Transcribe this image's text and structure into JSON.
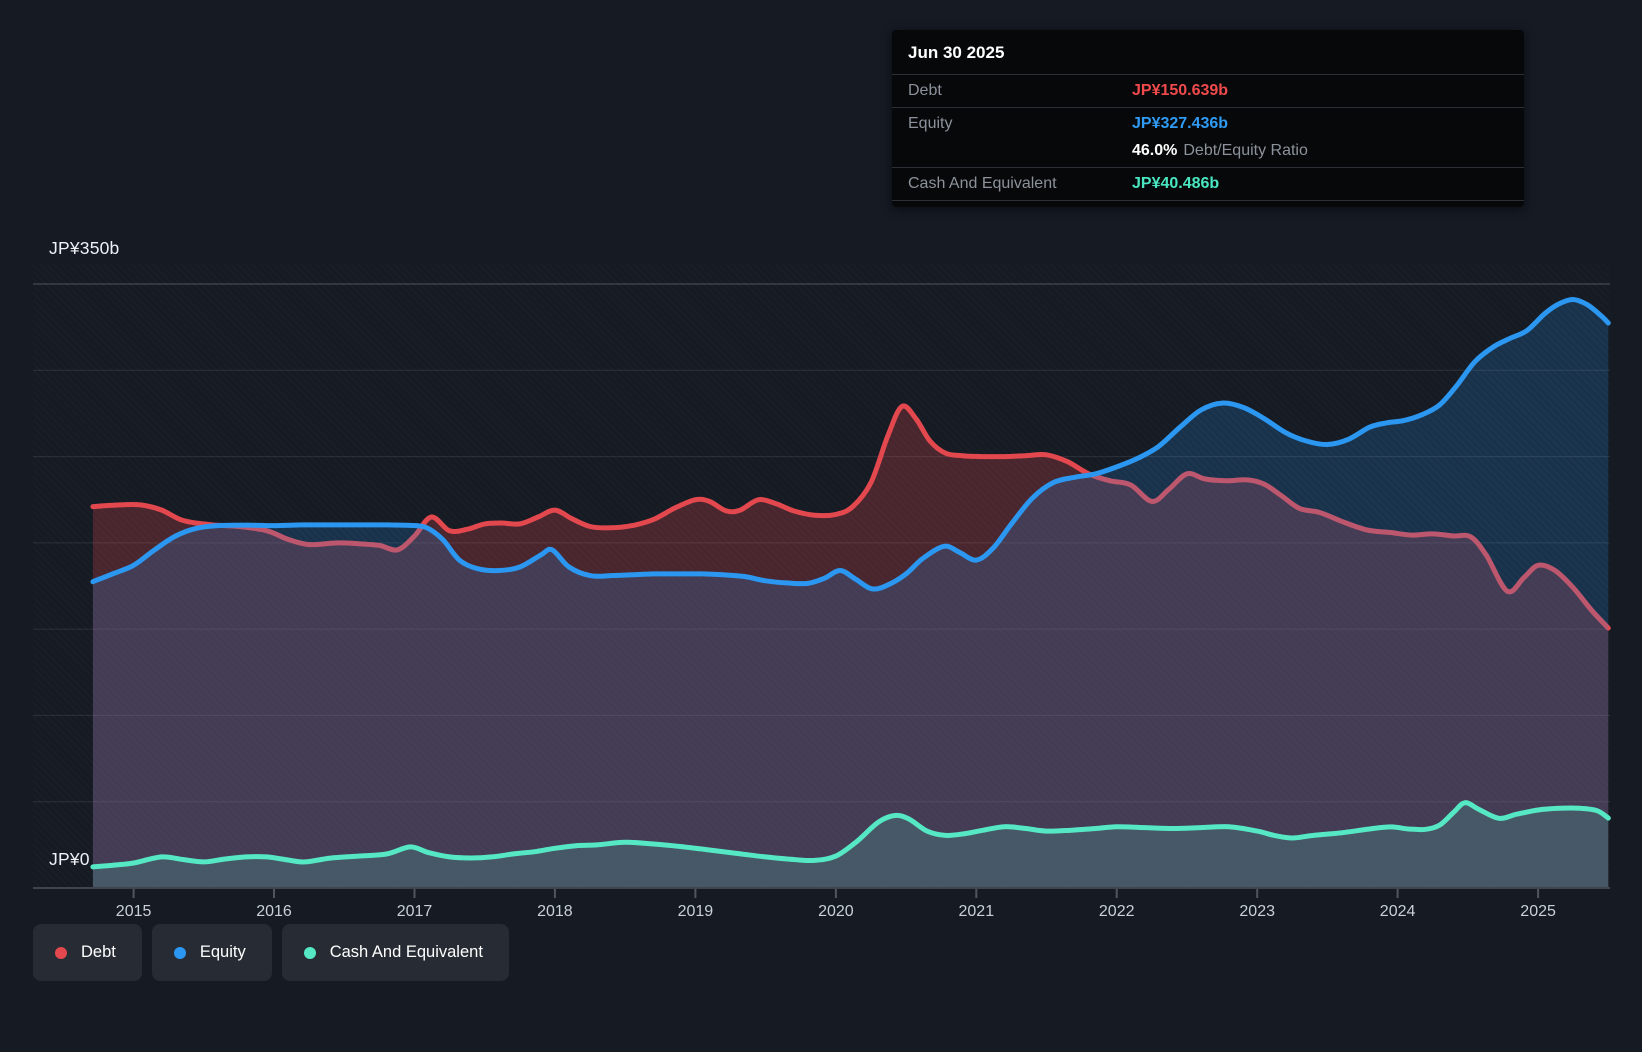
{
  "tooltip": {
    "date": "Jun 30 2025",
    "debt_label": "Debt",
    "debt_value": "JP¥150.639b",
    "equity_label": "Equity",
    "equity_value": "JP¥327.436b",
    "ratio_value": "46.0%",
    "ratio_label": "Debt/Equity Ratio",
    "cash_label": "Cash And Equivalent",
    "cash_value": "JP¥40.486b",
    "debt_color": "#f04a4d",
    "equity_color": "#2f9bf4",
    "cash_color": "#49e6c2"
  },
  "axis": {
    "y_top_label": "JP¥350b",
    "y_zero_label": "JP¥0",
    "years": [
      "2015",
      "2016",
      "2017",
      "2018",
      "2019",
      "2020",
      "2021",
      "2022",
      "2023",
      "2024",
      "2025"
    ]
  },
  "legend": {
    "items": [
      {
        "label": "Debt",
        "color": "#e2484e"
      },
      {
        "label": "Equity",
        "color": "#2b97f1"
      },
      {
        "label": "Cash And Equivalent",
        "color": "#56e8c4"
      }
    ]
  },
  "chart_data": {
    "type": "area",
    "title": "Debt to Equity history",
    "unit": "JP¥ billions",
    "ylim": [
      0,
      350
    ],
    "x_range": [
      2014.71,
      2025.5
    ],
    "gridline_values": [
      350,
      300,
      250,
      200,
      150,
      100,
      50
    ],
    "year_ticks": [
      2015,
      2016,
      2017,
      2018,
      2019,
      2020,
      2021,
      2022,
      2023,
      2024,
      2025
    ],
    "last_point_date": "Jun 30 2025",
    "series": [
      {
        "name": "Debt",
        "color": "#e2484e",
        "fill_alpha": 0.26,
        "end_value": 150.639,
        "points": [
          [
            2014.71,
            221
          ],
          [
            2014.9,
            222
          ],
          [
            2015.05,
            222
          ],
          [
            2015.2,
            219
          ],
          [
            2015.35,
            213
          ],
          [
            2015.55,
            210.5
          ],
          [
            2015.75,
            209.5
          ],
          [
            2015.95,
            207
          ],
          [
            2016.1,
            202
          ],
          [
            2016.25,
            199
          ],
          [
            2016.45,
            200
          ],
          [
            2016.6,
            199.5
          ],
          [
            2016.75,
            198.5
          ],
          [
            2016.88,
            196
          ],
          [
            2017.0,
            204
          ],
          [
            2017.12,
            215
          ],
          [
            2017.25,
            207
          ],
          [
            2017.38,
            208
          ],
          [
            2017.5,
            211
          ],
          [
            2017.62,
            211.5
          ],
          [
            2017.75,
            211
          ],
          [
            2017.88,
            215
          ],
          [
            2018.0,
            219
          ],
          [
            2018.12,
            214
          ],
          [
            2018.25,
            209.5
          ],
          [
            2018.4,
            208.7
          ],
          [
            2018.55,
            210
          ],
          [
            2018.7,
            213.5
          ],
          [
            2018.85,
            220
          ],
          [
            2019.0,
            225
          ],
          [
            2019.1,
            224
          ],
          [
            2019.22,
            218.5
          ],
          [
            2019.32,
            219
          ],
          [
            2019.45,
            225
          ],
          [
            2019.58,
            222.5
          ],
          [
            2019.7,
            218.5
          ],
          [
            2019.85,
            216
          ],
          [
            2020.0,
            216.5
          ],
          [
            2020.12,
            221
          ],
          [
            2020.25,
            235
          ],
          [
            2020.37,
            262
          ],
          [
            2020.47,
            279
          ],
          [
            2020.57,
            272
          ],
          [
            2020.67,
            259
          ],
          [
            2020.78,
            252
          ],
          [
            2020.9,
            250.5
          ],
          [
            2021.05,
            250
          ],
          [
            2021.2,
            250
          ],
          [
            2021.35,
            250.5
          ],
          [
            2021.5,
            251
          ],
          [
            2021.65,
            247
          ],
          [
            2021.8,
            240
          ],
          [
            2021.95,
            236
          ],
          [
            2022.1,
            233.5
          ],
          [
            2022.25,
            224
          ],
          [
            2022.37,
            231
          ],
          [
            2022.5,
            240
          ],
          [
            2022.63,
            237
          ],
          [
            2022.78,
            236
          ],
          [
            2022.93,
            236.5
          ],
          [
            2023.05,
            234
          ],
          [
            2023.17,
            227.5
          ],
          [
            2023.3,
            220
          ],
          [
            2023.45,
            217.5
          ],
          [
            2023.6,
            212.5
          ],
          [
            2023.78,
            207.5
          ],
          [
            2023.95,
            206
          ],
          [
            2024.1,
            204.5
          ],
          [
            2024.25,
            205.2
          ],
          [
            2024.4,
            204
          ],
          [
            2024.52,
            203.5
          ],
          [
            2024.63,
            193
          ],
          [
            2024.78,
            172
          ],
          [
            2024.9,
            180
          ],
          [
            2025.0,
            187
          ],
          [
            2025.12,
            184
          ],
          [
            2025.25,
            174
          ],
          [
            2025.38,
            161
          ],
          [
            2025.5,
            150.6
          ]
        ]
      },
      {
        "name": "Equity",
        "color": "#2b97f1",
        "fill_alpha": 0.2,
        "end_value": 327.436,
        "points": [
          [
            2014.71,
            177.5
          ],
          [
            2014.85,
            182
          ],
          [
            2015.0,
            187
          ],
          [
            2015.15,
            196
          ],
          [
            2015.3,
            204
          ],
          [
            2015.45,
            208.5
          ],
          [
            2015.6,
            210
          ],
          [
            2015.8,
            210.3
          ],
          [
            2016.0,
            210
          ],
          [
            2016.2,
            210.4
          ],
          [
            2016.4,
            210.4
          ],
          [
            2016.6,
            210.4
          ],
          [
            2016.8,
            210.4
          ],
          [
            2016.95,
            210.2
          ],
          [
            2017.08,
            209
          ],
          [
            2017.2,
            202
          ],
          [
            2017.32,
            190
          ],
          [
            2017.45,
            185
          ],
          [
            2017.6,
            184
          ],
          [
            2017.75,
            186
          ],
          [
            2017.9,
            193
          ],
          [
            2017.98,
            196
          ],
          [
            2018.1,
            186
          ],
          [
            2018.25,
            181
          ],
          [
            2018.4,
            181
          ],
          [
            2018.55,
            181.5
          ],
          [
            2018.7,
            182
          ],
          [
            2018.88,
            182
          ],
          [
            2019.05,
            182
          ],
          [
            2019.2,
            181.5
          ],
          [
            2019.35,
            180.5
          ],
          [
            2019.5,
            178
          ],
          [
            2019.65,
            176.8
          ],
          [
            2019.8,
            176.5
          ],
          [
            2019.92,
            179.5
          ],
          [
            2020.03,
            184
          ],
          [
            2020.14,
            179
          ],
          [
            2020.26,
            173.3
          ],
          [
            2020.38,
            176
          ],
          [
            2020.5,
            182
          ],
          [
            2020.62,
            191
          ],
          [
            2020.77,
            198
          ],
          [
            2020.88,
            194.5
          ],
          [
            2021.0,
            190
          ],
          [
            2021.12,
            197
          ],
          [
            2021.25,
            211
          ],
          [
            2021.4,
            226
          ],
          [
            2021.55,
            235
          ],
          [
            2021.7,
            238
          ],
          [
            2021.85,
            240
          ],
          [
            2022.0,
            244
          ],
          [
            2022.15,
            249
          ],
          [
            2022.3,
            256
          ],
          [
            2022.45,
            267
          ],
          [
            2022.6,
            277
          ],
          [
            2022.75,
            281
          ],
          [
            2022.9,
            278.5
          ],
          [
            2023.05,
            272
          ],
          [
            2023.2,
            264
          ],
          [
            2023.35,
            259
          ],
          [
            2023.5,
            257
          ],
          [
            2023.65,
            260
          ],
          [
            2023.8,
            267
          ],
          [
            2023.92,
            269.5
          ],
          [
            2024.05,
            271
          ],
          [
            2024.18,
            274.5
          ],
          [
            2024.3,
            280
          ],
          [
            2024.42,
            291
          ],
          [
            2024.55,
            305
          ],
          [
            2024.68,
            313.5
          ],
          [
            2024.8,
            318.5
          ],
          [
            2024.92,
            323
          ],
          [
            2025.05,
            333
          ],
          [
            2025.15,
            338.5
          ],
          [
            2025.25,
            341
          ],
          [
            2025.35,
            338
          ],
          [
            2025.45,
            331.5
          ],
          [
            2025.5,
            327.4
          ]
        ]
      },
      {
        "name": "Cash And Equivalent",
        "color": "#56e8c4",
        "fill_alpha": 0.16,
        "end_value": 40.486,
        "points": [
          [
            2014.71,
            12.2
          ],
          [
            2014.87,
            13.3
          ],
          [
            2015.0,
            14.5
          ],
          [
            2015.2,
            18
          ],
          [
            2015.35,
            16.5
          ],
          [
            2015.5,
            15.1
          ],
          [
            2015.65,
            16.8
          ],
          [
            2015.8,
            18
          ],
          [
            2015.95,
            18
          ],
          [
            2016.1,
            16.2
          ],
          [
            2016.22,
            15.1
          ],
          [
            2016.4,
            17.3
          ],
          [
            2016.6,
            18.5
          ],
          [
            2016.8,
            19.7
          ],
          [
            2016.97,
            23.8
          ],
          [
            2017.1,
            20.5
          ],
          [
            2017.25,
            18
          ],
          [
            2017.4,
            17.4
          ],
          [
            2017.55,
            18
          ],
          [
            2017.7,
            19.7
          ],
          [
            2017.85,
            21
          ],
          [
            2018.0,
            23
          ],
          [
            2018.15,
            24.5
          ],
          [
            2018.3,
            25
          ],
          [
            2018.5,
            26.5
          ],
          [
            2018.7,
            25.5
          ],
          [
            2018.9,
            24
          ],
          [
            2019.1,
            22
          ],
          [
            2019.3,
            20
          ],
          [
            2019.5,
            18
          ],
          [
            2019.7,
            16.5
          ],
          [
            2019.85,
            16
          ],
          [
            2020.0,
            18.5
          ],
          [
            2020.15,
            27
          ],
          [
            2020.3,
            38
          ],
          [
            2020.42,
            42
          ],
          [
            2020.52,
            40
          ],
          [
            2020.65,
            33
          ],
          [
            2020.78,
            30.5
          ],
          [
            2020.92,
            31.5
          ],
          [
            2021.05,
            33.5
          ],
          [
            2021.2,
            35.5
          ],
          [
            2021.35,
            34.5
          ],
          [
            2021.5,
            33
          ],
          [
            2021.68,
            33.5
          ],
          [
            2021.85,
            34.5
          ],
          [
            2022.0,
            35.5
          ],
          [
            2022.2,
            35
          ],
          [
            2022.4,
            34.5
          ],
          [
            2022.6,
            35
          ],
          [
            2022.8,
            35.5
          ],
          [
            2023.0,
            33
          ],
          [
            2023.12,
            30.5
          ],
          [
            2023.25,
            29
          ],
          [
            2023.4,
            30.5
          ],
          [
            2023.6,
            32
          ],
          [
            2023.8,
            34.2
          ],
          [
            2023.95,
            35.4
          ],
          [
            2024.08,
            34.2
          ],
          [
            2024.2,
            34
          ],
          [
            2024.3,
            36.5
          ],
          [
            2024.4,
            44
          ],
          [
            2024.48,
            49.4
          ],
          [
            2024.58,
            45.5
          ],
          [
            2024.72,
            40.4
          ],
          [
            2024.85,
            42.8
          ],
          [
            2025.0,
            45.2
          ],
          [
            2025.15,
            46.2
          ],
          [
            2025.3,
            46.2
          ],
          [
            2025.42,
            44.8
          ],
          [
            2025.5,
            40.5
          ]
        ]
      }
    ],
    "legend_position": "bottom-left",
    "grid": true
  }
}
